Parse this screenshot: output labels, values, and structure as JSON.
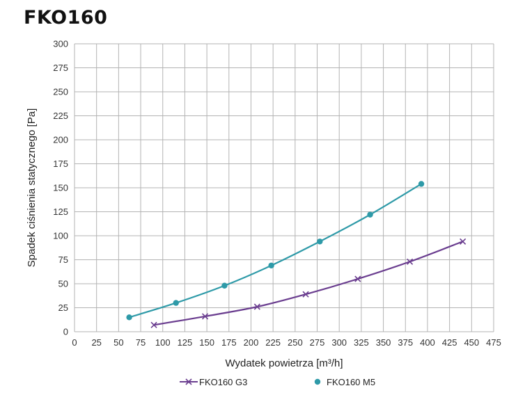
{
  "chart_data": {
    "type": "line",
    "title": "FKO160",
    "xlabel": "Wydatek powietrza [m³/h]",
    "ylabel": "Spadek ciśnienia statycznego [Pa]",
    "xlim": [
      0,
      475
    ],
    "ylim": [
      0,
      300
    ],
    "xticks": [
      "0",
      "25",
      "50",
      "75",
      "100",
      "125",
      "150",
      "175",
      "200",
      "225",
      "250",
      "275",
      "300",
      "325",
      "350",
      "375",
      "400",
      "425",
      "450",
      "475"
    ],
    "yticks": [
      "0",
      "25",
      "50",
      "75",
      "100",
      "125",
      "150",
      "175",
      "200",
      "225",
      "250",
      "275",
      "300"
    ],
    "grid": true,
    "legend_position": "bottom",
    "series": [
      {
        "name": "FKO160 G3",
        "color": "#6a3d8f",
        "marker": "x-icon",
        "x": [
          90,
          148,
          207,
          262,
          321,
          380,
          440
        ],
        "y": [
          7,
          16,
          26,
          39,
          55,
          73,
          94
        ]
      },
      {
        "name": "FKO160 M5",
        "color": "#2e9aa8",
        "marker": "circle-icon",
        "x": [
          62,
          115,
          170,
          223,
          278,
          335,
          393
        ],
        "y": [
          15,
          30,
          48,
          69,
          94,
          122,
          154
        ]
      }
    ]
  }
}
